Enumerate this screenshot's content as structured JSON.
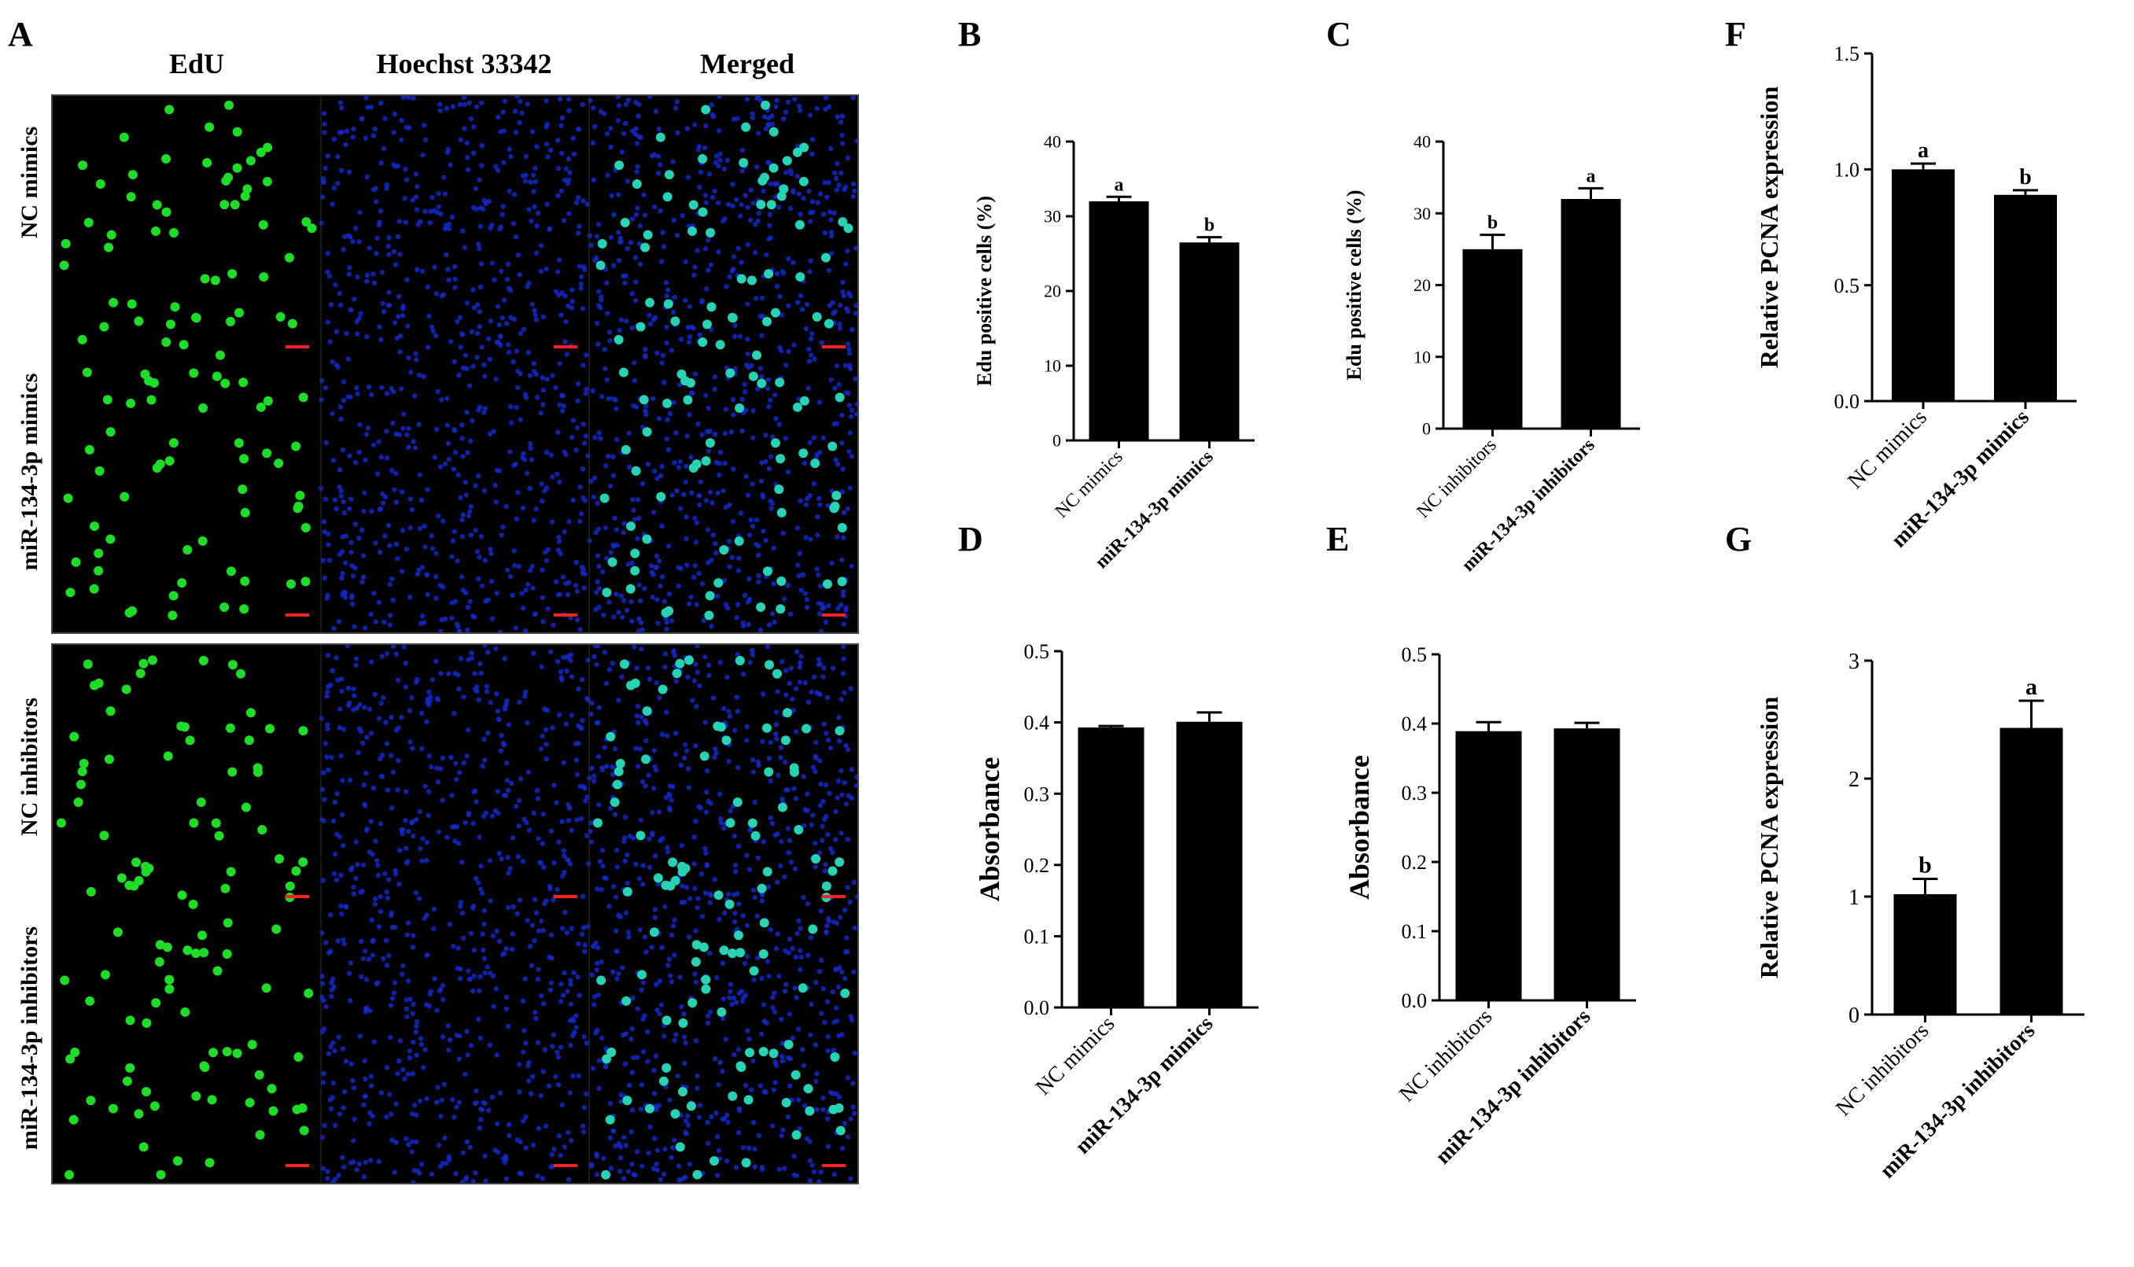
{
  "panel_labels": {
    "A": "A",
    "B": "B",
    "C": "C",
    "D": "D",
    "E": "E",
    "F": "F",
    "G": "G"
  },
  "microscopy": {
    "columns": [
      "EdU",
      "Hoechst 33342",
      "Merged"
    ],
    "rows": [
      "NC mimics",
      "miR-134-3p mimics",
      "NC inhibitors",
      "miR-134-3p inhibitors"
    ],
    "channel_colors": {
      "edu": "#1edc28",
      "hoechst": "#1428c8",
      "merged": "#28d2b4",
      "scale_bar": "#ff2020"
    }
  },
  "chart_data": [
    {
      "id": "B",
      "type": "bar",
      "categories": [
        "NC mimics",
        "miR-134-3p mimics"
      ],
      "values": [
        32,
        26.5
      ],
      "errors": [
        0.6,
        0.7
      ],
      "sig_letters": [
        "a",
        "b"
      ],
      "ylabel": "Edu positive cells (%)",
      "ylim": [
        0,
        40
      ],
      "yticks": [
        0,
        10,
        20,
        30,
        40
      ]
    },
    {
      "id": "C",
      "type": "bar",
      "categories": [
        "NC inhibitors",
        "miR-134-3p inhibitors"
      ],
      "values": [
        25,
        32
      ],
      "errors": [
        2,
        1.5
      ],
      "sig_letters": [
        "b",
        "a"
      ],
      "ylabel": "Edu positive cells (%)",
      "ylim": [
        0,
        40
      ],
      "yticks": [
        0,
        10,
        20,
        30,
        40
      ]
    },
    {
      "id": "F",
      "type": "bar",
      "categories": [
        "NC mimics",
        "miR-134-3p mimics"
      ],
      "values": [
        1.0,
        0.89
      ],
      "errors": [
        0.025,
        0.02
      ],
      "sig_letters": [
        "a",
        "b"
      ],
      "ylabel": "Relative PCNA expression",
      "ylim": [
        0,
        1.5
      ],
      "yticks": [
        0.0,
        0.5,
        1.0,
        1.5
      ]
    },
    {
      "id": "D",
      "type": "bar",
      "categories": [
        "NC mimics",
        "miR-134-3p mimics"
      ],
      "values": [
        0.393,
        0.401
      ],
      "errors": [
        0.002,
        0.013
      ],
      "sig_letters": [
        "",
        ""
      ],
      "ylabel": "Absorbance",
      "ylim": [
        0,
        0.5
      ],
      "yticks": [
        0.0,
        0.1,
        0.2,
        0.3,
        0.4,
        0.5
      ]
    },
    {
      "id": "E",
      "type": "bar",
      "categories": [
        "NC inhibitors",
        "miR-134-3p inhibitors"
      ],
      "values": [
        0.389,
        0.393
      ],
      "errors": [
        0.013,
        0.008
      ],
      "sig_letters": [
        "",
        ""
      ],
      "ylabel": "Absorbance",
      "ylim": [
        0,
        0.5
      ],
      "yticks": [
        0.0,
        0.1,
        0.2,
        0.3,
        0.4,
        0.5
      ]
    },
    {
      "id": "G",
      "type": "bar",
      "categories": [
        "NC inhibitors",
        "miR-134-3p inhibitors"
      ],
      "values": [
        1.02,
        2.43
      ],
      "errors": [
        0.13,
        0.23
      ],
      "sig_letters": [
        "b",
        "a"
      ],
      "ylabel": "Relative PCNA expression",
      "ylim": [
        0,
        3
      ],
      "yticks": [
        0,
        1,
        2,
        3
      ]
    }
  ]
}
